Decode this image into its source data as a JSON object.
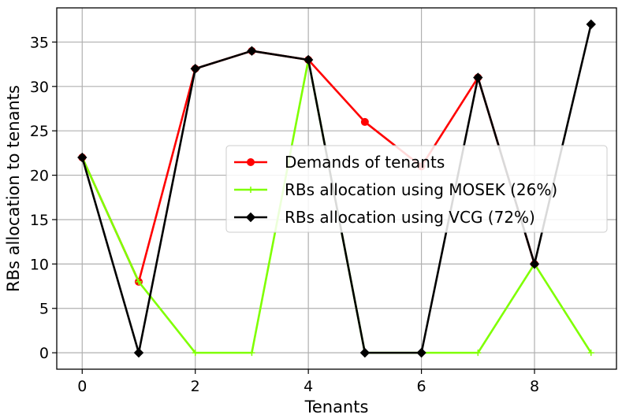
{
  "chart_data": {
    "type": "line",
    "title": "",
    "xlabel": "Tenants",
    "ylabel": "RBs allocation to tenants",
    "xlim": [
      -0.45,
      9.45
    ],
    "ylim": [
      -1.85,
      38.85
    ],
    "x_ticks": [
      0,
      2,
      4,
      6,
      8
    ],
    "y_ticks": [
      0,
      5,
      10,
      15,
      20,
      25,
      30,
      35
    ],
    "grid": true,
    "legend_position": "center-right",
    "x": [
      0,
      1,
      2,
      3,
      4,
      5,
      6,
      7,
      8,
      9
    ],
    "series": [
      {
        "name": "Demands of tenants",
        "color": "#ff0000",
        "marker": "circle",
        "x": [
          0,
          1,
          2,
          3,
          4,
          5,
          6,
          7,
          8
        ],
        "values": [
          22,
          8,
          32,
          34,
          33,
          26,
          21,
          31,
          10
        ]
      },
      {
        "name": "RBs allocation using MOSEK (26%)",
        "color": "#7fff00",
        "marker": "plus",
        "x": [
          0,
          1,
          2,
          3,
          4,
          5,
          6,
          7,
          8,
          9
        ],
        "values": [
          22,
          8,
          0,
          0,
          33,
          0,
          0,
          0,
          10,
          0
        ]
      },
      {
        "name": "RBs allocation using VCG (72%)",
        "color": "#000000",
        "marker": "diamond",
        "x": [
          0,
          1,
          2,
          3,
          4,
          5,
          6,
          7,
          8,
          9
        ],
        "values": [
          22,
          0,
          32,
          34,
          33,
          0,
          0,
          31,
          10,
          37
        ]
      }
    ]
  }
}
